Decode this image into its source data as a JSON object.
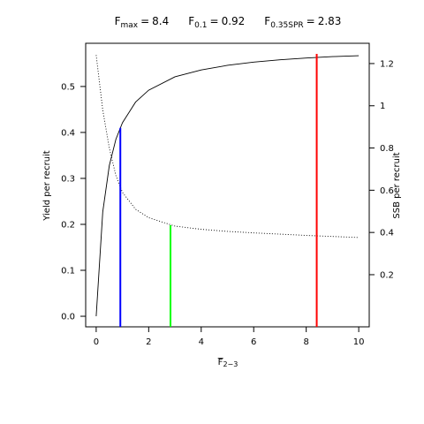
{
  "chart_data": {
    "type": "line",
    "title_parts": [
      {
        "symbol": "F",
        "subscript": "max",
        "operator": "=",
        "value": 8.4
      },
      {
        "symbol": "F",
        "subscript": "0.1",
        "operator": "=",
        "value": 0.92
      },
      {
        "symbol": "F",
        "subscript": "0.35SPR",
        "operator": "=",
        "value": 2.83
      }
    ],
    "xlabel": "F",
    "xlabel_subscript": "2−3",
    "ylabel": "Yield per recruit",
    "y2label": "SSB per recruit",
    "x": [
      0,
      0.25,
      0.5,
      0.75,
      1,
      1.5,
      2,
      3,
      4,
      5,
      6,
      7,
      8,
      9,
      10
    ],
    "series": [
      {
        "name": "Yield per recruit",
        "color": "#000000",
        "style": "solid",
        "values": [
          0,
          0.227,
          0.328,
          0.385,
          0.421,
          0.466,
          0.492,
          0.521,
          0.536,
          0.546,
          0.553,
          0.558,
          0.562,
          0.565,
          0.567
        ]
      },
      {
        "name": "SSB per recruit",
        "color": "#000000",
        "style": "dotted",
        "axis": "y2",
        "values": [
          1.24,
          0.98,
          0.8,
          0.67,
          0.59,
          0.51,
          0.47,
          0.43,
          0.415,
          0.405,
          0.398,
          0.392,
          0.386,
          0.381,
          0.376
        ]
      }
    ],
    "reference_lines": [
      {
        "x": 8.4,
        "top": 0.571,
        "color": "#ff0000"
      },
      {
        "x": 0.92,
        "top": 0.41,
        "color": "#0000ff"
      },
      {
        "x": 2.83,
        "top": 0.198,
        "color": "#00ff00"
      }
    ],
    "xlim": [
      -0.4,
      10.4
    ],
    "xticks": [
      0,
      2,
      4,
      6,
      8,
      10
    ],
    "ylim": [
      -0.023,
      0.594
    ],
    "yticks": [
      {
        "value": 0,
        "label": "0.0"
      },
      0.1,
      0.2,
      0.3,
      0.4,
      0.5
    ],
    "y2lim": [
      -0.047,
      1.296
    ],
    "y2ticks": [
      0.2,
      0.4,
      0.6,
      0.8,
      1,
      1.2
    ]
  }
}
